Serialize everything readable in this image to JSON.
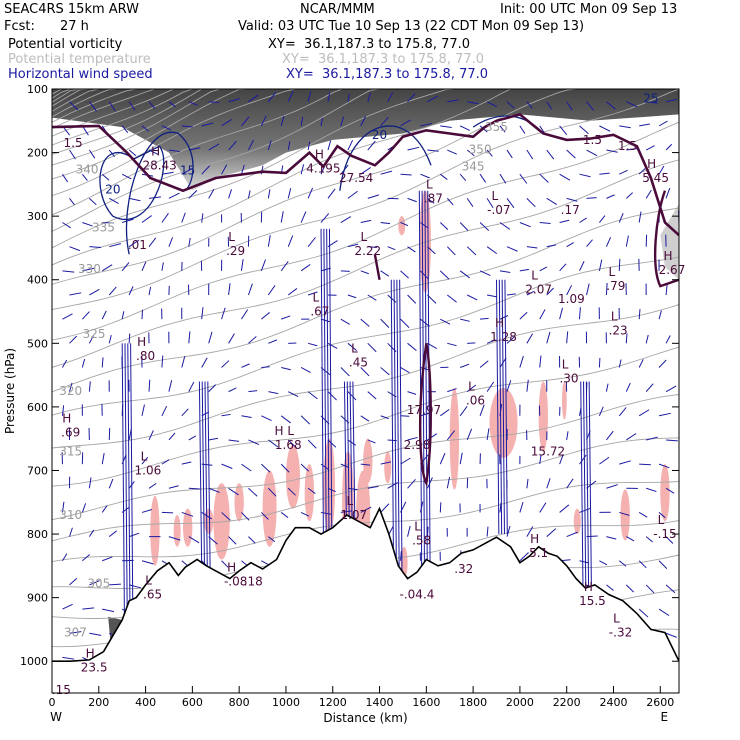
{
  "header": {
    "model": "SEAC4RS 15km ARW",
    "center": "NCAR/MMM",
    "init": "Init: 00 UTC Mon 09 Sep 13",
    "fcst_label": "Fcst:",
    "fcst_value": "27 h",
    "valid": "Valid: 03 UTC Tue 10 Sep 13 (22 CDT Mon 09 Sep 13)"
  },
  "fields": [
    {
      "name": "Potential vorticity",
      "xy": "XY=  36.1,187.3 to 175.8, 77.0",
      "color": "#000000"
    },
    {
      "name": "Potential temperature",
      "xy": "XY=  36.1,187.3 to 175.8, 77.0",
      "color": "#bdbdbd"
    },
    {
      "name": "Horizontal wind speed",
      "xy": "XY=  36.1,187.3 to 175.8, 77.0",
      "color": "#1a1aa0"
    }
  ],
  "colors": {
    "theta": "#a6a6a6",
    "wind": "#1a1aa0",
    "pv_thick": "#4a0a3a",
    "shade_pink": "#f5b0b0",
    "terrain": "#000000"
  },
  "chart_data": {
    "type": "cross-section",
    "xlabel": "Distance (km)",
    "ylabel": "Pressure (hPa)",
    "xlim": [
      0,
      2680
    ],
    "ylim": [
      1050,
      100
    ],
    "x_ticks": [
      "0",
      "200",
      "400",
      "600",
      "800",
      "1000",
      "1200",
      "1400",
      "1600",
      "1800",
      "2000",
      "2200",
      "2400",
      "2600"
    ],
    "y_ticks": [
      "100",
      "200",
      "300",
      "400",
      "500",
      "600",
      "700",
      "800",
      "900",
      "1000"
    ],
    "end_labels": {
      "left": "W",
      "right": "E"
    },
    "theta_contours": [
      {
        "label": "305",
        "x": 200,
        "p": 878
      },
      {
        "label": "307",
        "x": 100,
        "p": 955
      },
      {
        "label": "310",
        "x": 80,
        "p": 770
      },
      {
        "label": "315",
        "x": 80,
        "p": 670
      },
      {
        "label": "320",
        "x": 80,
        "p": 575
      },
      {
        "label": "325",
        "x": 180,
        "p": 485
      },
      {
        "label": "330",
        "x": 160,
        "p": 383
      },
      {
        "label": "335",
        "x": 220,
        "p": 318
      },
      {
        "label": "340",
        "x": 150,
        "p": 227
      },
      {
        "label": "345",
        "x": 1800,
        "p": 222
      },
      {
        "label": "350",
        "x": 1830,
        "p": 195
      },
      {
        "label": "355",
        "x": 1900,
        "p": 160
      }
    ],
    "pv_extrema": [
      {
        "kind": "H",
        "value": "28.43",
        "x": 460,
        "p": 220
      },
      {
        "kind": "H",
        "value": "4.195",
        "x": 1160,
        "p": 225
      },
      {
        "kind": "",
        "value": "27.54",
        "x": 1300,
        "p": 240
      },
      {
        "kind": "L",
        "value": ".87",
        "x": 1630,
        "p": 272
      },
      {
        "kind": "L",
        "value": "-.07",
        "x": 1910,
        "p": 290
      },
      {
        "kind": "",
        "value": ".17",
        "x": 2215,
        "p": 290
      },
      {
        "kind": "H",
        "value": "5.45",
        "x": 2580,
        "p": 240
      },
      {
        "kind": "L",
        "value": "2.22",
        "x": 1350,
        "p": 355
      },
      {
        "kind": "L",
        "value": ".29",
        "x": 785,
        "p": 355
      },
      {
        "kind": "",
        "value": ".01",
        "x": 365,
        "p": 345
      },
      {
        "kind": "L",
        "value": ".67",
        "x": 1145,
        "p": 450
      },
      {
        "kind": "L",
        "value": "2.07",
        "x": 2080,
        "p": 415
      },
      {
        "kind": "",
        "value": "1.09",
        "x": 2220,
        "p": 430
      },
      {
        "kind": "L",
        "value": ".79",
        "x": 2410,
        "p": 410
      },
      {
        "kind": "H",
        "value": "2.67",
        "x": 2650,
        "p": 385
      },
      {
        "kind": "H",
        "value": ".80",
        "x": 400,
        "p": 520
      },
      {
        "kind": "L",
        "value": ".45",
        "x": 1310,
        "p": 530
      },
      {
        "kind": "H",
        "value": "1.28",
        "x": 1930,
        "p": 490
      },
      {
        "kind": "L",
        "value": ".23",
        "x": 2420,
        "p": 480
      },
      {
        "kind": "L",
        "value": ".30",
        "x": 2210,
        "p": 555
      },
      {
        "kind": "",
        "value": "17.97",
        "x": 1590,
        "p": 605
      },
      {
        "kind": "L",
        "value": ".06",
        "x": 1810,
        "p": 590
      },
      {
        "kind": "H",
        "value": ".69",
        "x": 80,
        "p": 640
      },
      {
        "kind": "H L",
        "value": "1.68",
        "x": 1010,
        "p": 660
      },
      {
        "kind": "",
        "value": "2.98",
        "x": 1560,
        "p": 660
      },
      {
        "kind": "",
        "value": "15.72",
        "x": 2120,
        "p": 670
      },
      {
        "kind": "L",
        "value": "1.06",
        "x": 410,
        "p": 700
      },
      {
        "kind": "L",
        "value": "1.07",
        "x": 1290,
        "p": 770
      },
      {
        "kind": "L",
        "value": ".58",
        "x": 1580,
        "p": 810
      },
      {
        "kind": "",
        "value": ".32",
        "x": 1760,
        "p": 855
      },
      {
        "kind": "H",
        "value": "5.1",
        "x": 2080,
        "p": 830
      },
      {
        "kind": "L",
        "value": ".65",
        "x": 430,
        "p": 895
      },
      {
        "kind": "H",
        "value": "-.08",
        "x": 785,
        "p": 875
      },
      {
        "kind": "",
        "value": ".18",
        "x": 860,
        "p": 875
      },
      {
        "kind": "",
        "value": "-.04.4",
        "x": 1560,
        "p": 895
      },
      {
        "kind": "H",
        "value": "15.5",
        "x": 2310,
        "p": 905
      },
      {
        "kind": "L",
        "value": "-.32",
        "x": 2430,
        "p": 955
      },
      {
        "kind": "L",
        "value": "-.15",
        "x": 2620,
        "p": 800
      },
      {
        "kind": "H",
        "value": "23.5",
        "x": 180,
        "p": 1010
      },
      {
        "kind": "",
        "value": ".15",
        "x": 40,
        "p": 1045
      },
      {
        "kind": "",
        "value": "1.5",
        "x": 90,
        "p": 185
      },
      {
        "kind": "",
        "value": "1.5",
        "x": 2310,
        "p": 180
      },
      {
        "kind": "",
        "value": "1.5",
        "x": 2460,
        "p": 190
      }
    ],
    "wind_labels": [
      {
        "value": "20",
        "x": 260,
        "p": 258
      },
      {
        "value": "15",
        "x": 580,
        "p": 228
      },
      {
        "value": "20",
        "x": 1400,
        "p": 172
      },
      {
        "value": "25",
        "x": 2560,
        "p": 115
      }
    ],
    "terrain_profile": [
      [
        0,
        1000
      ],
      [
        80,
        1000
      ],
      [
        160,
        998
      ],
      [
        220,
        985
      ],
      [
        260,
        960
      ],
      [
        300,
        935
      ],
      [
        330,
        905
      ],
      [
        360,
        900
      ],
      [
        400,
        880
      ],
      [
        450,
        858
      ],
      [
        500,
        845
      ],
      [
        540,
        865
      ],
      [
        570,
        852
      ],
      [
        620,
        840
      ],
      [
        660,
        850
      ],
      [
        700,
        858
      ],
      [
        760,
        870
      ],
      [
        800,
        858
      ],
      [
        850,
        845
      ],
      [
        900,
        855
      ],
      [
        960,
        840
      ],
      [
        1000,
        810
      ],
      [
        1040,
        790
      ],
      [
        1100,
        790
      ],
      [
        1150,
        800
      ],
      [
        1200,
        790
      ],
      [
        1260,
        770
      ],
      [
        1310,
        780
      ],
      [
        1360,
        790
      ],
      [
        1400,
        760
      ],
      [
        1440,
        800
      ],
      [
        1480,
        850
      ],
      [
        1520,
        870
      ],
      [
        1560,
        860
      ],
      [
        1600,
        840
      ],
      [
        1650,
        850
      ],
      [
        1700,
        845
      ],
      [
        1750,
        830
      ],
      [
        1800,
        825
      ],
      [
        1850,
        815
      ],
      [
        1900,
        805
      ],
      [
        1960,
        820
      ],
      [
        2000,
        845
      ],
      [
        2040,
        835
      ],
      [
        2080,
        820
      ],
      [
        2120,
        830
      ],
      [
        2160,
        835
      ],
      [
        2200,
        850
      ],
      [
        2240,
        870
      ],
      [
        2280,
        885
      ],
      [
        2320,
        880
      ],
      [
        2380,
        895
      ],
      [
        2440,
        905
      ],
      [
        2500,
        925
      ],
      [
        2560,
        950
      ],
      [
        2620,
        955
      ],
      [
        2680,
        1000
      ]
    ]
  }
}
